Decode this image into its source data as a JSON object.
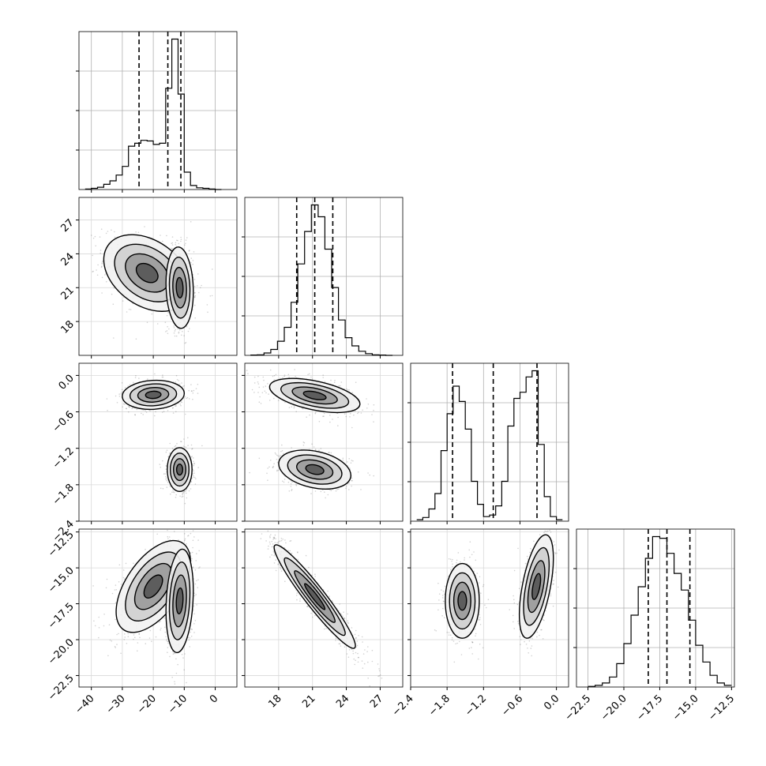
{
  "chart_data": {
    "type": "corner",
    "parameters": [
      {
        "range": [
          -44,
          7
        ],
        "ticks": [
          -40,
          -30,
          -20,
          -10,
          0
        ],
        "quantiles": [
          -24.6,
          -15.3,
          -11.1
        ]
      },
      {
        "range": [
          15,
          29
        ],
        "ticks": [
          18,
          21,
          24,
          27
        ],
        "quantiles": [
          19.6,
          21.2,
          22.8
        ]
      },
      {
        "range": [
          -2.4,
          0.2
        ],
        "ticks": [
          -2.4,
          -1.8,
          -1.2,
          -0.6,
          0.0
        ],
        "quantiles": [
          -1.71,
          -1.04,
          -0.32
        ]
      },
      {
        "range": [
          -23.3,
          -12.3
        ],
        "ticks": [
          -22.5,
          -20.0,
          -17.5,
          -15.0,
          -12.5
        ],
        "quantiles": [
          -18.3,
          -17.0,
          -15.4
        ]
      }
    ],
    "histograms": [
      {
        "bin_edges": [
          -42,
          -40,
          -38,
          -36,
          -34,
          -32,
          -30,
          -28,
          -26,
          -24,
          -22,
          -20,
          -18,
          -16,
          -14,
          -12,
          -10,
          -8,
          -6,
          -4,
          -2,
          0,
          2
        ],
        "counts": [
          1,
          2,
          4,
          9,
          15,
          25,
          40,
          75,
          80,
          85,
          84,
          78,
          80,
          175,
          260,
          165,
          30,
          7,
          3,
          2,
          1,
          0
        ]
      },
      {
        "bin_edges": [
          15.5,
          16.1,
          16.7,
          17.3,
          17.9,
          18.5,
          19.1,
          19.7,
          20.3,
          20.9,
          21.5,
          22.1,
          22.7,
          23.3,
          23.9,
          24.5,
          25.1,
          25.7,
          26.3,
          26.9,
          27.5,
          28.1
        ],
        "counts": [
          1,
          2,
          8,
          20,
          48,
          95,
          180,
          310,
          420,
          510,
          470,
          360,
          230,
          120,
          60,
          32,
          14,
          6,
          2,
          1,
          0
        ]
      },
      {
        "bin_edges": [
          -2.3,
          -2.2,
          -2.1,
          -2.0,
          -1.9,
          -1.8,
          -1.7,
          -1.6,
          -1.5,
          -1.4,
          -1.3,
          -1.2,
          -1.1,
          -1.0,
          -0.9,
          -0.8,
          -0.7,
          -0.6,
          -0.5,
          -0.4,
          -0.3,
          -0.2,
          -0.1,
          0.0,
          0.1
        ],
        "counts": [
          5,
          12,
          40,
          90,
          230,
          350,
          440,
          390,
          300,
          130,
          55,
          15,
          20,
          50,
          130,
          310,
          400,
          420,
          470,
          490,
          250,
          80,
          15,
          5
        ]
      },
      {
        "bin_edges": [
          -22.5,
          -22.0,
          -21.5,
          -21.0,
          -20.5,
          -20.0,
          -19.5,
          -19.0,
          -18.5,
          -18.0,
          -17.5,
          -17.0,
          -16.5,
          -16.0,
          -15.5,
          -15.0,
          -14.5,
          -14.0,
          -13.5,
          -13.0,
          -12.5
        ],
        "counts": [
          2,
          5,
          12,
          30,
          70,
          130,
          215,
          300,
          385,
          450,
          445,
          400,
          340,
          290,
          200,
          125,
          75,
          35,
          12,
          5
        ]
      }
    ],
    "correlations": [
      {
        "x": 0,
        "y": 1,
        "modes": [
          {
            "mean": [
              -22,
              22.3
            ],
            "sd": [
              7,
              1.7
            ],
            "rho": -0.35,
            "w": 0.5
          },
          {
            "mean": [
              -11.5,
              21
            ],
            "sd": [
              2.2,
              1.8
            ],
            "rho": -0.1,
            "w": 0.5
          }
        ]
      },
      {
        "x": 0,
        "y": 2,
        "modes": [
          {
            "mean": [
              -20,
              -0.32
            ],
            "sd": [
              5,
              0.12
            ],
            "rho": 0.1,
            "w": 0.5
          },
          {
            "mean": [
              -11.5,
              -1.55
            ],
            "sd": [
              2,
              0.18
            ],
            "rho": 0.0,
            "w": 0.5
          }
        ]
      },
      {
        "x": 1,
        "y": 2,
        "modes": [
          {
            "mean": [
              21.2,
              -0.33
            ],
            "sd": [
              2.0,
              0.14
            ],
            "rho": -0.5,
            "w": 0.5
          },
          {
            "mean": [
              21.2,
              -1.55
            ],
            "sd": [
              1.6,
              0.16
            ],
            "rho": -0.3,
            "w": 0.5
          }
        ]
      },
      {
        "x": 0,
        "y": 3,
        "modes": [
          {
            "mean": [
              -20,
              -16.3
            ],
            "sd": [
              6,
              1.6
            ],
            "rho": 0.55,
            "w": 0.5
          },
          {
            "mean": [
              -11.5,
              -17.3
            ],
            "sd": [
              2.2,
              1.8
            ],
            "rho": 0.2,
            "w": 0.5
          }
        ]
      },
      {
        "x": 1,
        "y": 3,
        "modes": [
          {
            "mean": [
              21.2,
              -17.0
            ],
            "sd": [
              1.8,
              1.8
            ],
            "rho": -0.95,
            "w": 1.0
          }
        ]
      },
      {
        "x": 2,
        "y": 3,
        "modes": [
          {
            "mean": [
              -1.55,
              -17.3
            ],
            "sd": [
              0.14,
              1.3
            ],
            "rho": 0.0,
            "w": 0.5
          },
          {
            "mean": [
              -0.33,
              -16.3
            ],
            "sd": [
              0.14,
              1.8
            ],
            "rho": 0.55,
            "w": 0.5
          }
        ]
      }
    ],
    "grid": true,
    "xlabel": "",
    "ylabel": "",
    "title": ""
  }
}
